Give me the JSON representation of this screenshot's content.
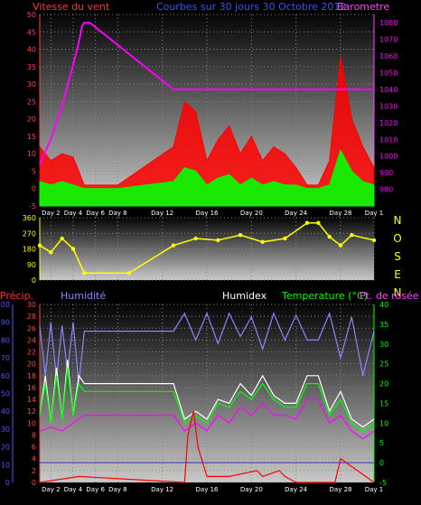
{
  "header": {
    "wind_title": "Vitesse du vent",
    "period_title": "Courbes sur 30 jours 30 Octobre 2012",
    "baro_title": "Barometre"
  },
  "compass": [
    "N",
    "O",
    "S",
    "E",
    "N"
  ],
  "bottom_header": {
    "precip": "Précip.",
    "humidity": "Humidité",
    "humidex": "Humidex",
    "temperature": "Temperature (°C)",
    "dewpoint": "Pt. de rosée"
  },
  "x_ticks": [
    "Day 2",
    "Day 4",
    "Day 6",
    "Day 8",
    "Day 12",
    "Day 16",
    "Day 20",
    "Day 24",
    "Day 28",
    "Day 1"
  ],
  "colors": {
    "wind": "#ff0000",
    "wind_avg": "#00ff00",
    "barometer": "#ff00ff",
    "direction": "#ffff00",
    "humidity": "#8888ff",
    "temperature": "#00ff00",
    "dewpoint": "#ff00ff",
    "humidex": "#ffffff",
    "precip": "#ff0000",
    "wind_axis": "#ff4444",
    "precip_axis": "#5555ff"
  },
  "chart_data": [
    {
      "type": "line",
      "name": "wind_barometer",
      "x_ticks": [
        "Day 2",
        "Day 4",
        "Day 6",
        "Day 8",
        "Day 12",
        "Day 16",
        "Day 20",
        "Day 24",
        "Day 28",
        "Day 1"
      ],
      "left_ylim": [
        -5,
        50
      ],
      "left_ticks": [
        -5,
        0,
        5,
        10,
        15,
        20,
        25,
        30,
        35,
        40,
        45,
        50
      ],
      "right_ylim": [
        970,
        1085
      ],
      "right_ticks": [
        980,
        990,
        1000,
        1010,
        1020,
        1030,
        1040,
        1050,
        1060,
        1070,
        1080
      ],
      "series": [
        {
          "name": "Vitesse du vent",
          "color": "#ff0000",
          "x": [
            0,
            1,
            2,
            3,
            4,
            5,
            6,
            7,
            12,
            13,
            14,
            15,
            16,
            17,
            18,
            19,
            20,
            21,
            22,
            23,
            24,
            25,
            26,
            27,
            28,
            29,
            30
          ],
          "y": [
            12,
            8,
            10,
            9,
            1,
            1,
            1,
            1,
            12,
            25,
            22,
            8,
            14,
            18,
            10,
            15,
            8,
            12,
            10,
            6,
            1,
            1,
            8,
            38,
            20,
            12,
            6
          ]
        },
        {
          "name": "",
          "color": "#00ff00",
          "x": [
            0,
            1,
            2,
            3,
            4,
            5,
            6,
            7,
            12,
            13,
            14,
            15,
            16,
            17,
            18,
            19,
            20,
            21,
            22,
            23,
            24,
            25,
            26,
            27,
            28,
            29,
            30
          ],
          "y": [
            2,
            1,
            2,
            1,
            0,
            0,
            0,
            0,
            2,
            6,
            5,
            1,
            3,
            4,
            1,
            3,
            1,
            2,
            1,
            1,
            0,
            0,
            1,
            11,
            5,
            2,
            1
          ]
        },
        {
          "name": "Barometre",
          "color": "#ff00ff",
          "x": [
            0,
            1,
            2,
            3,
            3.4,
            3.8,
            4,
            4.5,
            12,
            16,
            20,
            24,
            28,
            30
          ],
          "y": [
            995,
            1010,
            1030,
            1055,
            1065,
            1078,
            1080,
            1080,
            1040,
            1040,
            1040,
            1040,
            1040,
            1040
          ]
        }
      ]
    },
    {
      "type": "scatter",
      "name": "wind_direction",
      "x_ticks": [
        "Day 2",
        "Day 4",
        "Day 6",
        "Day 8",
        "Day 12",
        "Day 16",
        "Day 20",
        "Day 24",
        "Day 28",
        "Day 1"
      ],
      "ylim": [
        0,
        360
      ],
      "yticks": [
        0,
        90,
        180,
        270,
        360
      ],
      "series": [
        {
          "name": "direction",
          "color": "#ffff00",
          "x": [
            0,
            1,
            2,
            3,
            4,
            8,
            12,
            14,
            16,
            18,
            20,
            22,
            24,
            25,
            26,
            27,
            28,
            30
          ],
          "y": [
            200,
            160,
            240,
            180,
            40,
            40,
            200,
            240,
            230,
            260,
            220,
            240,
            330,
            330,
            250,
            200,
            260,
            230
          ]
        }
      ]
    },
    {
      "type": "line",
      "name": "temperature_humidity_precip",
      "x_ticks": [
        "Day 2",
        "Day 4",
        "Day 6",
        "Day 8",
        "Day 12",
        "Day 16",
        "Day 20",
        "Day 24",
        "Day 28",
        "Day 1"
      ],
      "precip_ylim": [
        0,
        100
      ],
      "precip_ticks": [
        0,
        10,
        20,
        30,
        40,
        50,
        60,
        70,
        80,
        90,
        100
      ],
      "humidity_ylim": [
        0,
        30
      ],
      "humidity_ticks": [
        0,
        2,
        4,
        6,
        8,
        10,
        12,
        14,
        16,
        18,
        20,
        22,
        24,
        26,
        28,
        30
      ],
      "temp_ylim": [
        -5,
        40
      ],
      "temp_ticks": [
        -5,
        0,
        5,
        10,
        15,
        20,
        25,
        30,
        35,
        40
      ],
      "series": [
        {
          "name": "Humidité",
          "color": "#8888ff",
          "x": [
            0,
            0.5,
            1,
            1.5,
            2,
            2.5,
            3,
            3.5,
            4,
            12,
            13,
            14,
            15,
            16,
            17,
            18,
            19,
            20,
            21,
            22,
            23,
            24,
            25,
            26,
            27,
            28,
            29,
            30
          ],
          "y": [
            88,
            60,
            90,
            58,
            88,
            62,
            90,
            55,
            85,
            85,
            95,
            80,
            95,
            78,
            95,
            82,
            93,
            75,
            95,
            80,
            94,
            80,
            80,
            95,
            70,
            93,
            60,
            85
          ]
        },
        {
          "name": "Temperature (°C)",
          "color": "#00ff00",
          "x": [
            0,
            0.5,
            1,
            1.5,
            2,
            2.5,
            3,
            3.5,
            4,
            12,
            13,
            14,
            15,
            16,
            17,
            18,
            19,
            20,
            21,
            22,
            23,
            24,
            25,
            26,
            27,
            28,
            29,
            30
          ],
          "y": [
            12,
            20,
            10,
            22,
            11,
            24,
            12,
            20,
            18,
            18,
            10,
            12,
            10,
            15,
            14,
            18,
            16,
            20,
            16,
            14,
            14,
            20,
            20,
            12,
            16,
            10,
            8,
            10
          ]
        },
        {
          "name": "Pt. de rosée",
          "color": "#ff00ff",
          "x": [
            0,
            1,
            2,
            3,
            4,
            12,
            13,
            14,
            15,
            16,
            17,
            18,
            19,
            20,
            21,
            22,
            23,
            24,
            25,
            26,
            27,
            28,
            29,
            30
          ],
          "y": [
            8,
            9,
            8,
            10,
            12,
            12,
            8,
            10,
            8,
            12,
            10,
            14,
            12,
            15,
            12,
            12,
            11,
            16,
            16,
            10,
            12,
            8,
            6,
            8
          ]
        },
        {
          "name": "Humidex",
          "color": "#ffffff",
          "x": [
            0,
            0.5,
            1,
            1.5,
            2,
            2.5,
            3,
            3.5,
            4,
            12,
            13,
            14,
            15,
            16,
            17,
            18,
            19,
            20,
            21,
            22,
            23,
            24,
            25,
            26,
            27,
            28,
            29,
            30
          ],
          "y": [
            12,
            22,
            10,
            24,
            11,
            26,
            12,
            22,
            20,
            20,
            11,
            13,
            11,
            16,
            15,
            20,
            17,
            22,
            17,
            15,
            15,
            22,
            22,
            13,
            18,
            11,
            9,
            11
          ]
        },
        {
          "name": "Précip.",
          "color": "#ff0000",
          "x": [
            0,
            3.5,
            13,
            13.3,
            13.8,
            14.2,
            15,
            17,
            19.5,
            20,
            21.5,
            22,
            23,
            26.5,
            27,
            30
          ],
          "y": [
            0,
            1,
            0,
            8,
            12,
            6,
            1,
            1,
            2,
            1,
            2,
            1,
            0,
            0,
            4,
            0
          ]
        }
      ]
    }
  ]
}
